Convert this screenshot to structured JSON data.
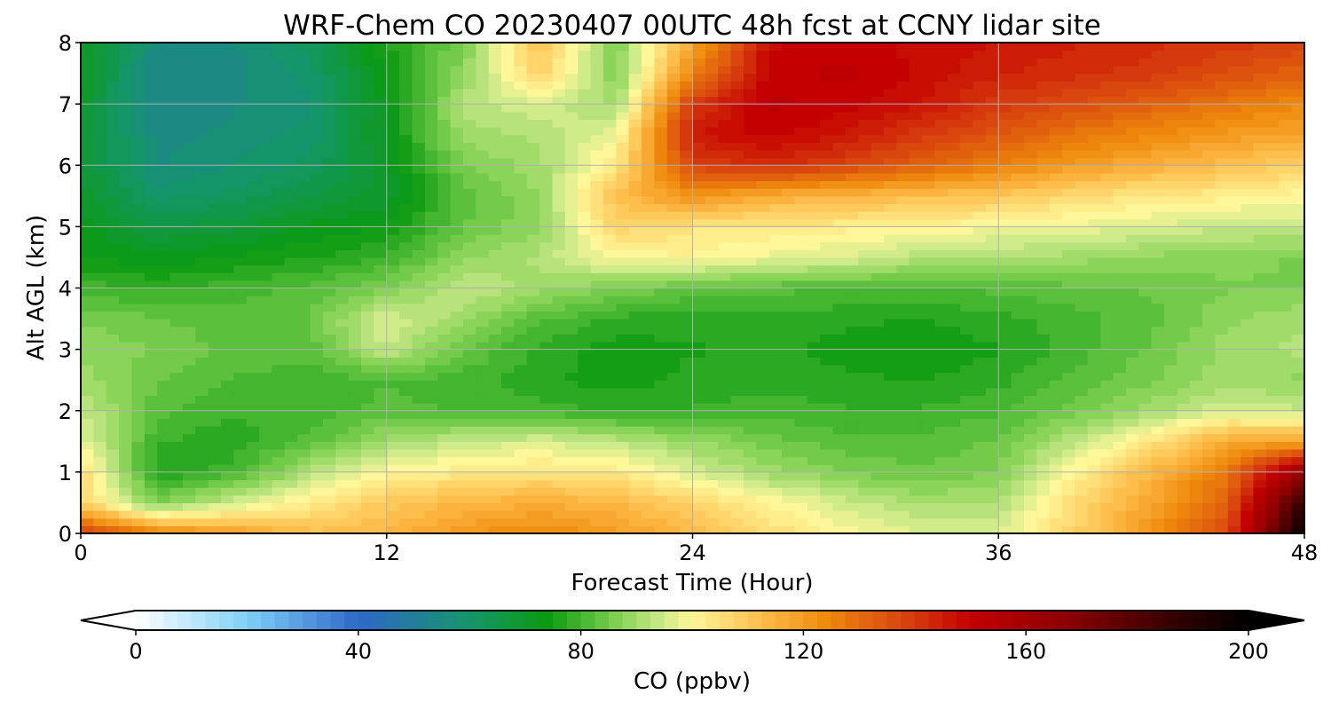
{
  "chart_data": {
    "type": "heatmap",
    "title": "WRF-Chem CO  20230407 00UTC 48h fcst at CCNY lidar site",
    "xlabel": "Forecast Time (Hour)",
    "ylabel": "Alt AGL (km)",
    "xlim": [
      0,
      48
    ],
    "ylim": [
      0,
      8
    ],
    "xticks": [
      "0",
      "12",
      "24",
      "36",
      "48"
    ],
    "yticks": [
      "0",
      "1",
      "2",
      "3",
      "4",
      "5",
      "6",
      "7",
      "8"
    ],
    "grid": true,
    "colorbar": {
      "label": "CO  (ppbv)",
      "range": [
        0,
        200
      ],
      "ticks": [
        "0",
        "40",
        "80",
        "120",
        "160",
        "200"
      ],
      "extend": "both",
      "colors": [
        "#ffffff",
        "#7fd0f8",
        "#2f67c8",
        "#15966a",
        "#0b9a10",
        "#7ccf4e",
        "#c6e887",
        "#fff79a",
        "#ffc04e",
        "#ef8a0c",
        "#d8440f",
        "#c40000",
        "#8a0000",
        "#3a0000",
        "#000000"
      ],
      "stops": [
        0,
        20,
        40,
        60,
        74,
        86,
        94,
        100,
        112,
        124,
        138,
        150,
        168,
        185,
        200
      ]
    },
    "x": [
      0,
      3,
      6,
      9,
      12,
      15,
      18,
      21,
      24,
      27,
      30,
      33,
      36,
      39,
      42,
      45,
      48
    ],
    "y": [
      0,
      0.5,
      1,
      1.5,
      2,
      2.5,
      3,
      3.5,
      4,
      4.5,
      5,
      5.5,
      6,
      6.5,
      7,
      7.5,
      8
    ],
    "z": [
      [
        140,
        125,
        120,
        112,
        114,
        121,
        124,
        120,
        113,
        106,
        100,
        96,
        96,
        108,
        122,
        138,
        200
      ],
      [
        108,
        86,
        95,
        103,
        110,
        114,
        116,
        114,
        108,
        101,
        95,
        91,
        92,
        106,
        118,
        133,
        188
      ],
      [
        106,
        76,
        80,
        92,
        100,
        103,
        105,
        103,
        96,
        90,
        86,
        84,
        86,
        101,
        114,
        128,
        166
      ],
      [
        98,
        79,
        77,
        82,
        90,
        94,
        96,
        93,
        89,
        85,
        82,
        82,
        84,
        93,
        104,
        117,
        118
      ],
      [
        94,
        82,
        79,
        80,
        82,
        81,
        80,
        78,
        79,
        80,
        79,
        79,
        81,
        85,
        90,
        96,
        94
      ],
      [
        90,
        84,
        81,
        80,
        81,
        80,
        77,
        75,
        77,
        78,
        77,
        76,
        78,
        82,
        86,
        90,
        88
      ],
      [
        88,
        86,
        83,
        82,
        94,
        84,
        78,
        75,
        76,
        77,
        75,
        74,
        76,
        80,
        84,
        90,
        92
      ],
      [
        86,
        84,
        82,
        84,
        96,
        90,
        82,
        78,
        77,
        78,
        77,
        76,
        78,
        80,
        83,
        88,
        91
      ],
      [
        80,
        78,
        80,
        82,
        86,
        94,
        90,
        86,
        83,
        82,
        81,
        81,
        82,
        83,
        84,
        86,
        86
      ],
      [
        74,
        72,
        74,
        76,
        79,
        88,
        92,
        100,
        101,
        98,
        96,
        92,
        91,
        90,
        88,
        87,
        86
      ],
      [
        73,
        66,
        68,
        72,
        74,
        84,
        88,
        108,
        104,
        103,
        102,
        101,
        99,
        98,
        96,
        94,
        94
      ],
      [
        70,
        60,
        62,
        66,
        70,
        82,
        89,
        112,
        122,
        116,
        114,
        112,
        110,
        106,
        103,
        102,
        100
      ],
      [
        69,
        56,
        59,
        62,
        70,
        86,
        90,
        104,
        138,
        142,
        138,
        132,
        126,
        120,
        116,
        112,
        108
      ],
      [
        70,
        55,
        57,
        60,
        72,
        90,
        92,
        98,
        146,
        150,
        146,
        140,
        134,
        128,
        124,
        120,
        118
      ],
      [
        70,
        54,
        56,
        58,
        72,
        92,
        96,
        90,
        140,
        152,
        150,
        146,
        140,
        136,
        132,
        128,
        124
      ],
      [
        71,
        54,
        55,
        60,
        74,
        88,
        108,
        86,
        125,
        150,
        152,
        148,
        144,
        142,
        140,
        136,
        132
      ],
      [
        72,
        55,
        56,
        62,
        76,
        86,
        112,
        86,
        118,
        148,
        150,
        148,
        146,
        144,
        142,
        140,
        138
      ]
    ]
  }
}
